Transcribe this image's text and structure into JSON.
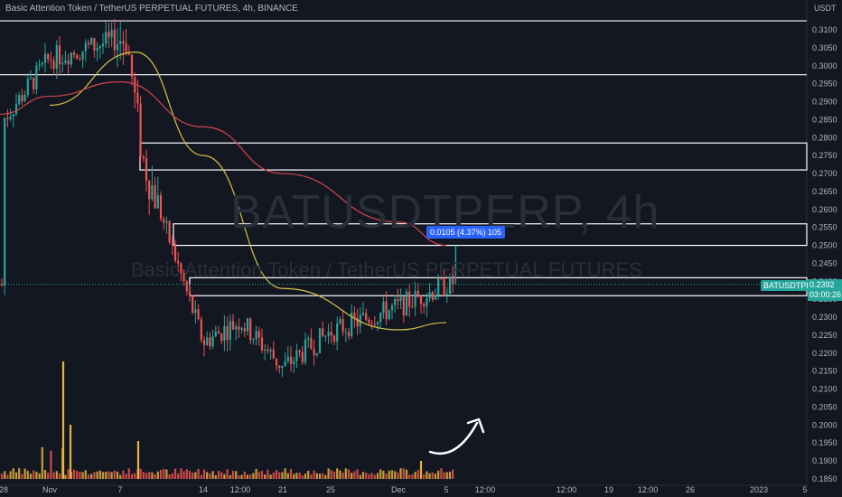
{
  "header": {
    "legend": "Basic Attention Token / TetherUS PERPETUAL FUTURES, 4h, BINANCE",
    "price_unit": "USDT"
  },
  "watermark": {
    "symbol": "BATUSDTPERP, 4h",
    "description": "Basic Attention Token / TetherUS PERPETUAL FUTURES"
  },
  "price_tag": {
    "symbol": "BATUSDTPERP",
    "price": "0.2392",
    "countdown": "03:00:26"
  },
  "measure_tooltip": "0.0105 (4.37%) 105",
  "colors": {
    "background": "#131722",
    "up": "#26a69a",
    "down": "#ef5350",
    "ma_fast": "#d6c347",
    "ma_slow": "#d2454c",
    "zone_stroke": "#ffffff",
    "volume": "#e5b53a"
  },
  "chart_data": {
    "type": "candlestick",
    "y_axis": {
      "side": "right",
      "range": [
        0.184,
        0.313
      ],
      "ticks": [
        "0.3100",
        "0.3050",
        "0.3000",
        "0.2950",
        "0.2900",
        "0.2850",
        "0.2800",
        "0.2750",
        "0.2700",
        "0.2650",
        "0.2600",
        "0.2550",
        "0.2500",
        "0.2450",
        "0.2400",
        "0.2350",
        "0.2300",
        "0.2250",
        "0.2200",
        "0.2150",
        "0.2100",
        "0.2050",
        "0.2000",
        "0.1950",
        "0.1900",
        "0.1850"
      ]
    },
    "x_axis": {
      "ticks": [
        "28",
        "Nov",
        "7",
        "14",
        "12:00",
        "21",
        "25",
        "Dec",
        "5",
        "12:00",
        "12:00",
        "19",
        "12:00",
        "26",
        "2023",
        "5"
      ]
    },
    "horizontal_lines": [
      0.3125,
      0.2975
    ],
    "zones": [
      {
        "top": 0.2785,
        "bottom": 0.271
      },
      {
        "top": 0.256,
        "bottom": 0.25
      },
      {
        "top": 0.241,
        "bottom": 0.236
      }
    ],
    "price_path_anchors": [
      {
        "x": "28",
        "close": 0.285
      },
      {
        "x": "Nov",
        "close": 0.302
      },
      {
        "x": "7",
        "close": 0.308
      },
      {
        "x": "7",
        "close": 0.274
      },
      {
        "x": "14",
        "close": 0.223
      },
      {
        "x": "12:00",
        "close": 0.229
      },
      {
        "x": "21",
        "close": 0.216
      },
      {
        "x": "25",
        "close": 0.226
      },
      {
        "x": "Dec",
        "close": 0.233
      },
      {
        "x": "5",
        "close": 0.239
      }
    ],
    "last_price": 0.2392,
    "last_wick_high": 0.25,
    "moving_averages": [
      {
        "type": "fast",
        "points": [
          {
            "x": "Nov",
            "y": 0.289
          },
          {
            "x": "7",
            "y": 0.3038
          },
          {
            "x": "14",
            "y": 0.275
          },
          {
            "x": "21",
            "y": 0.238
          },
          {
            "x": "Dec",
            "y": 0.2265
          },
          {
            "x": "5",
            "y": 0.2285
          }
        ]
      },
      {
        "type": "slow",
        "points": [
          {
            "x": "28",
            "y": 0.2865
          },
          {
            "x": "Nov",
            "y": 0.2915
          },
          {
            "x": "7",
            "y": 0.2955
          },
          {
            "x": "14",
            "y": 0.283
          },
          {
            "x": "21",
            "y": 0.27
          },
          {
            "x": "Dec",
            "y": 0.2565
          },
          {
            "x": "5",
            "y": 0.25
          }
        ]
      }
    ]
  }
}
